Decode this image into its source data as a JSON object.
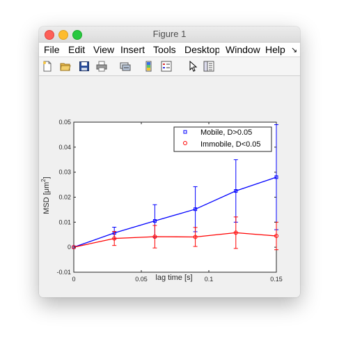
{
  "window": {
    "title": "Figure 1"
  },
  "menubar": {
    "items": [
      "File",
      "Edit",
      "View",
      "Insert",
      "Tools",
      "Desktop",
      "Window",
      "Help"
    ],
    "overflow_glyph": "↘"
  },
  "toolbar": {
    "icons": [
      "new-figure-icon",
      "open-file-icon",
      "save-icon",
      "print-icon",
      "link-icon",
      "colorbar-icon",
      "legend-icon",
      "pointer-icon",
      "property-editor-icon"
    ]
  },
  "chart_data": {
    "type": "line",
    "xlabel": "lag time [s]",
    "ylabel": "MSD [μm",
    "ylabel_sup": "2",
    "ylabel_close": "]",
    "xlim": [
      0,
      0.15
    ],
    "ylim": [
      -0.01,
      0.05
    ],
    "xticks": [
      "0",
      "0.05",
      "0.1",
      "0.15"
    ],
    "yticks": [
      "-0.01",
      "0",
      "0.01",
      "0.02",
      "0.03",
      "0.04",
      "0.05"
    ],
    "legend_position": "top-right",
    "series": [
      {
        "name": "Mobile, D>0.05",
        "color": "#0000ff",
        "marker": "square",
        "x": [
          0,
          0.03,
          0.06,
          0.09,
          0.12,
          0.15
        ],
        "y": [
          0,
          0.0057,
          0.0105,
          0.0152,
          0.0225,
          0.028
        ],
        "err": [
          0,
          0.0023,
          0.0065,
          0.009,
          0.0125,
          0.021
        ]
      },
      {
        "name": "Immobile, D<0.05",
        "color": "#ff0000",
        "marker": "circle",
        "x": [
          0,
          0.03,
          0.06,
          0.09,
          0.12,
          0.15
        ],
        "y": [
          0,
          0.0035,
          0.0042,
          0.0041,
          0.0058,
          0.0045
        ],
        "err": [
          0,
          0.0028,
          0.0045,
          0.0038,
          0.0063,
          0.0055
        ]
      }
    ]
  }
}
